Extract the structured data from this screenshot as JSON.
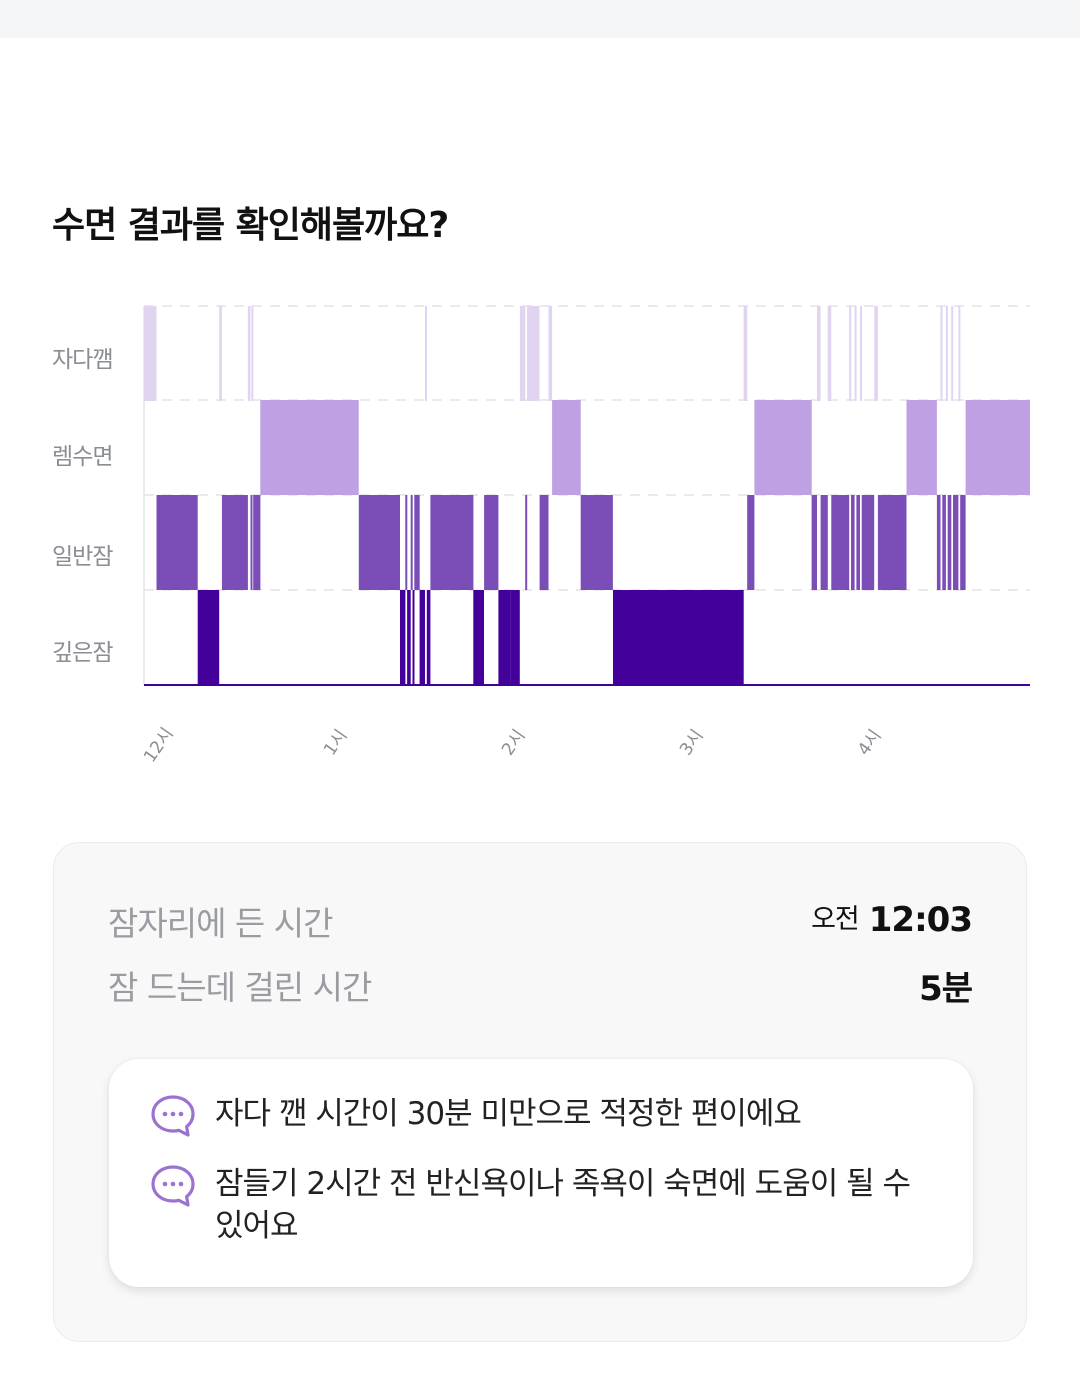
{
  "header": {
    "title": "수면 결과를 확인해볼까요?"
  },
  "chart_data": {
    "type": "hypnogram",
    "stages": [
      "자다깸",
      "렘수면",
      "일반잠",
      "깊은잠"
    ],
    "x_ticks": [
      "12시",
      "1시",
      "2시",
      "3시",
      "4시"
    ],
    "x_range_hours": [
      0,
      4.95
    ],
    "stage_colors": {
      "자다깸": "#e1d4f0",
      "렘수면": "#bea0e3",
      "일반잠": "#7a4db7",
      "깊은잠": "#44009a"
    },
    "segments": [
      {
        "stage": "자다깸",
        "start": 0.0,
        "end": 0.07
      },
      {
        "stage": "일반잠",
        "start": 0.07,
        "end": 0.3
      },
      {
        "stage": "깊은잠",
        "start": 0.3,
        "end": 0.42
      },
      {
        "stage": "자다깸",
        "start": 0.42,
        "end": 0.435
      },
      {
        "stage": "일반잠",
        "start": 0.435,
        "end": 0.58
      },
      {
        "stage": "자다깸",
        "start": 0.58,
        "end": 0.595
      },
      {
        "stage": "일반잠",
        "start": 0.595,
        "end": 0.6
      },
      {
        "stage": "자다깸",
        "start": 0.6,
        "end": 0.61
      },
      {
        "stage": "일반잠",
        "start": 0.61,
        "end": 0.65
      },
      {
        "stage": "렘수면",
        "start": 0.65,
        "end": 1.2
      },
      {
        "stage": "일반잠",
        "start": 1.2,
        "end": 1.43
      },
      {
        "stage": "깊은잠",
        "start": 1.43,
        "end": 1.46
      },
      {
        "stage": "일반잠",
        "start": 1.46,
        "end": 1.47
      },
      {
        "stage": "깊은잠",
        "start": 1.47,
        "end": 1.49
      },
      {
        "stage": "일반잠",
        "start": 1.49,
        "end": 1.5
      },
      {
        "stage": "깊은잠",
        "start": 1.5,
        "end": 1.51
      },
      {
        "stage": "일반잠",
        "start": 1.51,
        "end": 1.54
      },
      {
        "stage": "깊은잠",
        "start": 1.54,
        "end": 1.57
      },
      {
        "stage": "자다깸",
        "start": 1.57,
        "end": 1.58
      },
      {
        "stage": "깊은잠",
        "start": 1.58,
        "end": 1.6
      },
      {
        "stage": "일반잠",
        "start": 1.6,
        "end": 1.84
      },
      {
        "stage": "깊은잠",
        "start": 1.84,
        "end": 1.9
      },
      {
        "stage": "일반잠",
        "start": 1.9,
        "end": 1.98
      },
      {
        "stage": "깊은잠",
        "start": 1.98,
        "end": 2.05
      },
      {
        "stage": "깊은잠",
        "start": 2.05,
        "end": 2.1
      },
      {
        "stage": "자다깸",
        "start": 2.1,
        "end": 2.13
      },
      {
        "stage": "일반잠",
        "start": 2.13,
        "end": 2.14
      },
      {
        "stage": "자다깸",
        "start": 2.14,
        "end": 2.21
      },
      {
        "stage": "일반잠",
        "start": 2.21,
        "end": 2.26
      },
      {
        "stage": "자다깸",
        "start": 2.26,
        "end": 2.28
      },
      {
        "stage": "렘수면",
        "start": 2.28,
        "end": 2.44
      },
      {
        "stage": "일반잠",
        "start": 2.44,
        "end": 2.62
      },
      {
        "stage": "깊은잠",
        "start": 2.62,
        "end": 3.35
      },
      {
        "stage": "자다깸",
        "start": 3.35,
        "end": 3.37
      },
      {
        "stage": "일반잠",
        "start": 3.37,
        "end": 3.41
      },
      {
        "stage": "렘수면",
        "start": 3.41,
        "end": 3.73
      },
      {
        "stage": "일반잠",
        "start": 3.73,
        "end": 3.76
      },
      {
        "stage": "자다깸",
        "start": 3.76,
        "end": 3.78
      },
      {
        "stage": "일반잠",
        "start": 3.78,
        "end": 3.82
      },
      {
        "stage": "자다깸",
        "start": 3.82,
        "end": 3.84
      },
      {
        "stage": "일반잠",
        "start": 3.84,
        "end": 3.94
      },
      {
        "stage": "자다깸",
        "start": 3.94,
        "end": 3.95
      },
      {
        "stage": "일반잠",
        "start": 3.95,
        "end": 3.97
      },
      {
        "stage": "자다깸",
        "start": 3.97,
        "end": 3.98
      },
      {
        "stage": "일반잠",
        "start": 3.98,
        "end": 4.0
      },
      {
        "stage": "자다깸",
        "start": 4.0,
        "end": 4.01
      },
      {
        "stage": "일반잠",
        "start": 4.01,
        "end": 4.08
      },
      {
        "stage": "자다깸",
        "start": 4.08,
        "end": 4.1
      },
      {
        "stage": "일반잠",
        "start": 4.1,
        "end": 4.26
      },
      {
        "stage": "렘수면",
        "start": 4.26,
        "end": 4.43
      },
      {
        "stage": "일반잠",
        "start": 4.43,
        "end": 4.45
      },
      {
        "stage": "자다깸",
        "start": 4.45,
        "end": 4.46
      },
      {
        "stage": "일반잠",
        "start": 4.46,
        "end": 4.48
      },
      {
        "stage": "자다깸",
        "start": 4.48,
        "end": 4.49
      },
      {
        "stage": "일반잠",
        "start": 4.49,
        "end": 4.51
      },
      {
        "stage": "자다깸",
        "start": 4.51,
        "end": 4.52
      },
      {
        "stage": "일반잠",
        "start": 4.52,
        "end": 4.55
      },
      {
        "stage": "자다깸",
        "start": 4.55,
        "end": 4.56
      },
      {
        "stage": "일반잠",
        "start": 4.56,
        "end": 4.59
      },
      {
        "stage": "렘수면",
        "start": 4.59,
        "end": 4.95
      }
    ]
  },
  "summary": {
    "bedtime_label": "잠자리에 든 시간",
    "bedtime_prefix": "오전",
    "bedtime_value": "12:03",
    "latency_label": "잠 드는데 걸린 시간",
    "latency_value": "5분"
  },
  "tips": [
    {
      "icon": "chat-bubble-icon",
      "text": "자다 깬 시간이 30분 미만으로 적정한 편이에요"
    },
    {
      "icon": "chat-bubble-icon",
      "text": "잠들기 2시간 전 반신욕이나 족욕이 숙면에 도움이 될 수 있어요"
    }
  ],
  "colors": {
    "accent": "#9b72cf",
    "card_bg": "#f8f8f9"
  }
}
